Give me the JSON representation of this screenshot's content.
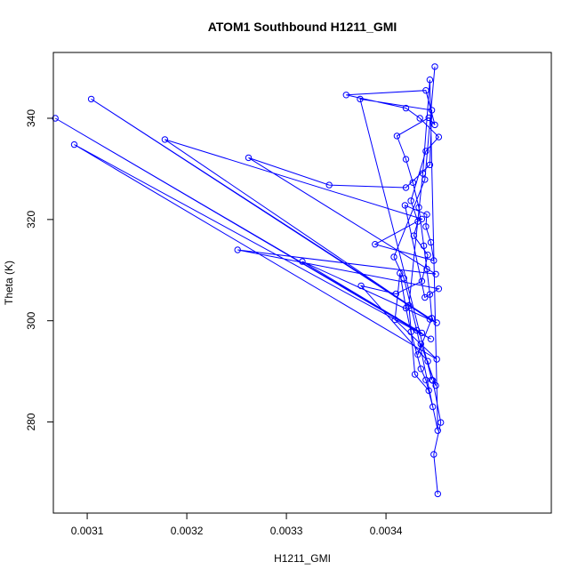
{
  "chart_data": {
    "type": "line",
    "title": "ATOM1 Southbound H1211_GMI",
    "xlabel": "H1211_GMI",
    "ylabel": "Theta (K)",
    "xlim": [
      0.003066,
      0.003566
    ],
    "ylim": [
      262,
      353
    ],
    "x_ticks": [
      0.0031,
      0.0032,
      0.0033,
      0.0034
    ],
    "x_tick_labels": [
      "0.0031",
      "0.0032",
      "0.0033",
      "0.0034"
    ],
    "y_ticks": [
      280,
      300,
      320,
      340
    ],
    "y_tick_labels": [
      "280",
      "300",
      "320",
      "340"
    ],
    "grid": false,
    "legend": "none",
    "line_color": "#0000ff",
    "marker": "open-circle",
    "series": [
      {
        "x": [
          0.003452,
          0.003448,
          0.003455,
          0.003447,
          0.00345,
          0.003435,
          0.003432,
          0.003446,
          0.003444,
          0.003441,
          0.003438,
          0.003433,
          0.003427,
          0.00342,
          0.003411,
          0.003443,
          0.003449,
          0.00344,
          0.00336,
          0.00342,
          0.003434,
          0.003453,
          0.00344,
          0.003425,
          0.003432,
          0.003428,
          0.003442,
          0.003436,
          0.00341,
          0.003375,
          0.003442,
          0.003446,
          0.003374,
          0.003446,
          0.003444,
          0.00342,
          0.003343,
          0.003262,
          0.00345,
          0.003251,
          0.003453,
          0.003439,
          0.003419,
          0.003441,
          0.00344,
          0.003445,
          0.003448,
          0.003389,
          0.003436,
          0.003178,
          0.003444,
          0.003104,
          0.003451,
          0.003316,
          0.003436,
          0.003068,
          0.003445,
          0.003087,
          0.003451,
          0.003409,
          0.003414,
          0.00342,
          0.003425,
          0.003435,
          0.00344,
          0.003447,
          0.003443,
          0.003429,
          0.003423,
          0.003437,
          0.003444,
          0.003452,
          0.003431,
          0.003418,
          0.003408,
          0.003439,
          0.003449
        ],
        "y": [
          265.8,
          273.6,
          279.9,
          288.2,
          287.2,
          295.4,
          293.3,
          300.5,
          305.2,
          310.2,
          314.8,
          322.4,
          327.3,
          331.9,
          336.5,
          340.1,
          338.7,
          345.5,
          344.6,
          342.0,
          340.0,
          336.3,
          333.5,
          323.7,
          319.6,
          316.8,
          313.0,
          307.8,
          305.3,
          306.9,
          292.0,
          288.3,
          343.8,
          341.6,
          330.8,
          326.3,
          326.8,
          332.2,
          309.2,
          314.0,
          306.3,
          304.6,
          322.8,
          321.0,
          318.6,
          315.5,
          311.9,
          315.1,
          320.1,
          335.8,
          300.3,
          343.8,
          299.6,
          311.7,
          297.6,
          340.0,
          296.4,
          334.8,
          292.4,
          300.2,
          309.4,
          302.5,
          297.8,
          290.5,
          288.3,
          283.0,
          286.2,
          289.4,
          303.0,
          329.1,
          347.6,
          278.3,
          298.1,
          308.4,
          312.6,
          327.9,
          350.2
        ]
      }
    ]
  }
}
